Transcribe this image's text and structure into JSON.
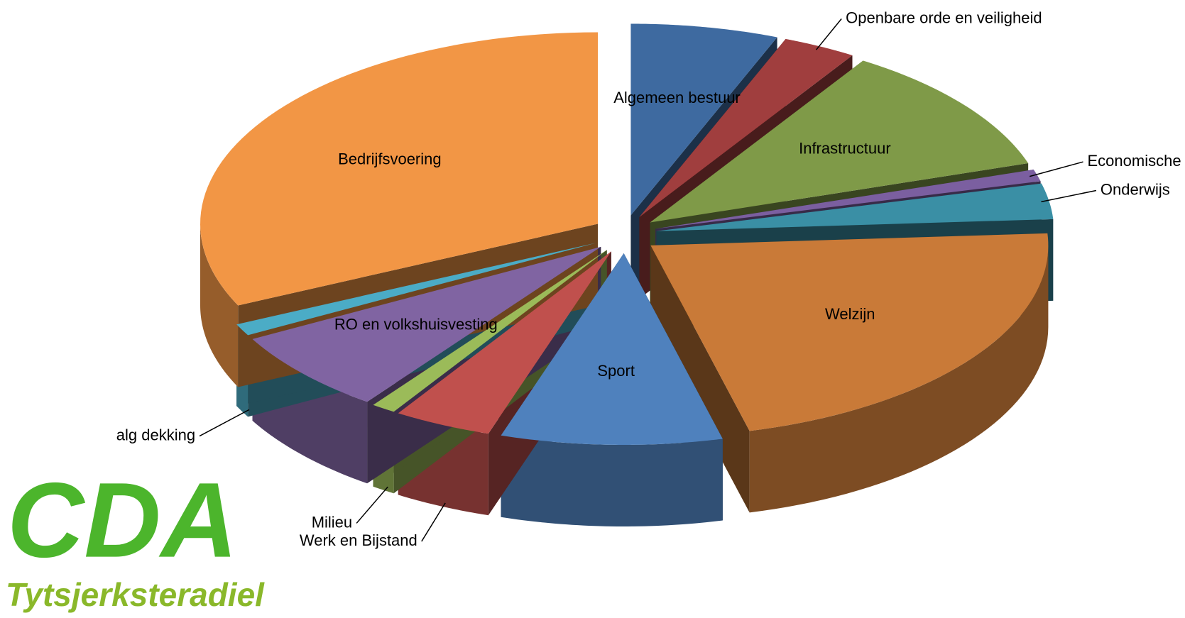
{
  "chart_data": {
    "type": "pie",
    "categories": [
      "Algemeen bestuur",
      "Openbare orde en veiligheid",
      "Infrastructuur",
      "Economische zaken",
      "Onderwijs",
      "Welzijn",
      "Sport",
      "Werk en Bijstand",
      "Milieu",
      "RO en volkshuisvesting",
      "alg dekking",
      "Bedrijfsvoering"
    ],
    "values": [
      6,
      3,
      11,
      1,
      3,
      22,
      9,
      4,
      1,
      7,
      1,
      32
    ],
    "colors": [
      "#3e6aa0",
      "#a03e3e",
      "#7f9a48",
      "#7b5fa0",
      "#3a8fa5",
      "#c97a38",
      "#4f81bd",
      "#c0504d",
      "#9bbb59",
      "#8064a2",
      "#4bacc6",
      "#f29645"
    ]
  },
  "logo": {
    "title": "CDA",
    "subtitle": "Tytsjerksteradiel"
  }
}
